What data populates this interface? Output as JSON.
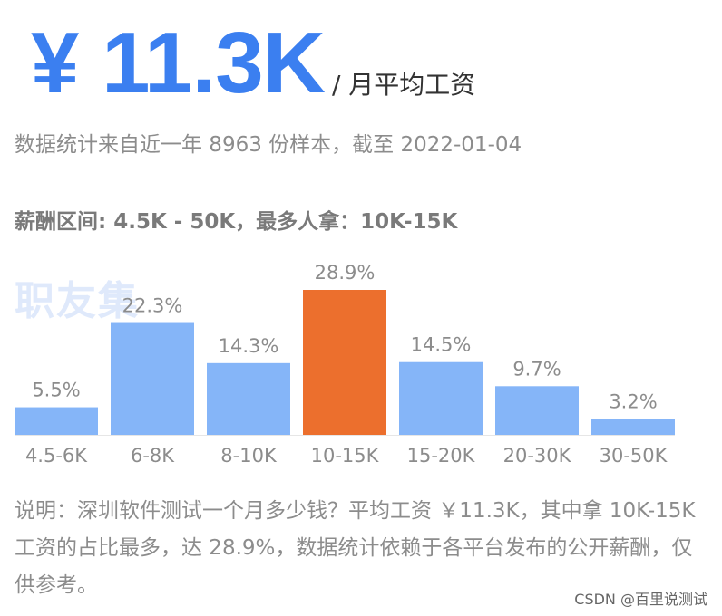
{
  "header": {
    "salary": "¥ 11.3K",
    "unit": "/ 月平均工资"
  },
  "stats_line": "数据统计来自近一年 8963 份样本，截至 2022-01-04",
  "range_line": "薪酬区间: 4.5K - 50K，最多人拿：10K-15K",
  "watermark": "职友集",
  "chart_data": {
    "type": "bar",
    "categories": [
      "4.5-6K",
      "6-8K",
      "8-10K",
      "10-15K",
      "15-20K",
      "20-30K",
      "30-50K"
    ],
    "values": [
      5.5,
      22.3,
      14.3,
      28.9,
      14.5,
      9.7,
      3.2
    ],
    "value_labels": [
      "5.5%",
      "22.3%",
      "14.3%",
      "28.9%",
      "14.5%",
      "9.7%",
      "3.2%"
    ],
    "highlight_index": 3,
    "colors": {
      "normal": "#85b5f8",
      "highlight": "#ec6f2d"
    },
    "ylim": [
      0,
      28.9
    ],
    "title": "",
    "xlabel": "",
    "ylabel": "",
    "grid": false
  },
  "note": "说明：深圳软件测试一个月多少钱？平均工资 ￥11.3K，其中拿 10K-15K 工资的占比最多，达 28.9%，数据统计依赖于各平台发布的公开薪酬，仅供参考。",
  "credit": "CSDN @百里说测试"
}
